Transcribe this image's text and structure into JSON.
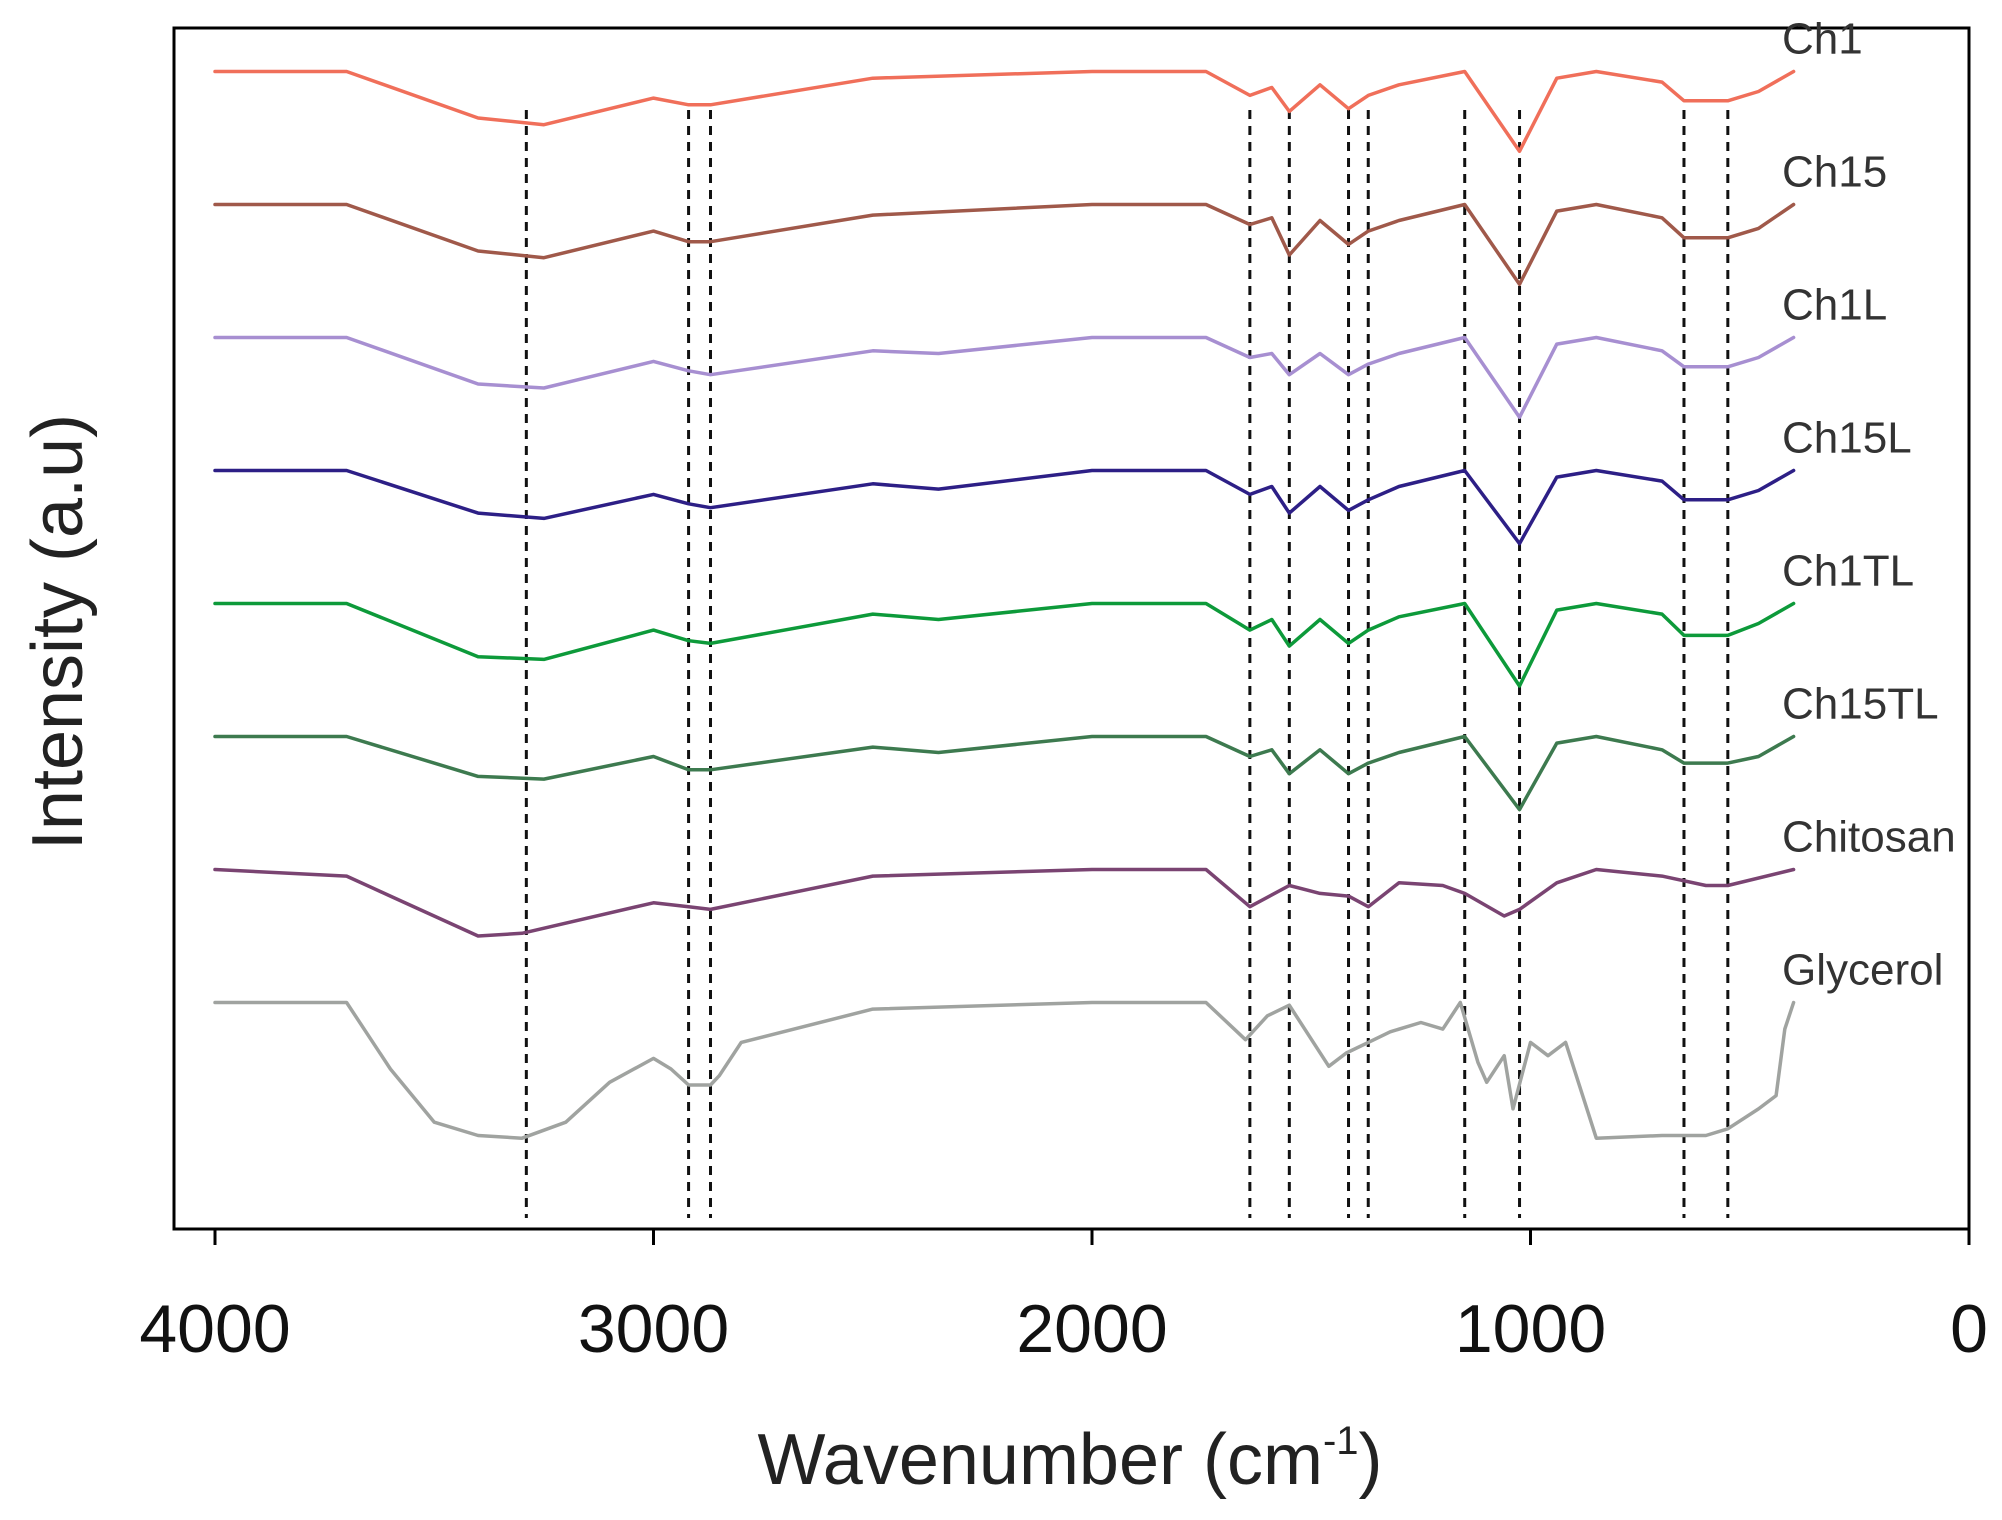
{
  "chart_data": {
    "type": "line",
    "title": "",
    "xlabel": "Wavenumber (cm",
    "xlabel_superscript": "-1",
    "xlabel_close": ")",
    "ylabel": "Intensity (a.u)",
    "xlim": [
      4000,
      0
    ],
    "x_ticks": [
      4000,
      3000,
      2000,
      1000,
      0
    ],
    "x_tick_labels": [
      "4000",
      "3000",
      "2000",
      "1000",
      "0"
    ],
    "y_ticks": [],
    "grid": false,
    "reference_lines": [
      3290,
      2920,
      2870,
      1640,
      1550,
      1415,
      1370,
      1150,
      1025,
      650,
      550
    ],
    "series": [
      {
        "name": "Ch1",
        "color": "#f06f5a",
        "offset": 8.5,
        "x": [
          4000,
          3700,
          3400,
          3250,
          3000,
          2920,
          2870,
          2500,
          2000,
          1740,
          1640,
          1590,
          1550,
          1480,
          1415,
          1370,
          1300,
          1150,
          1025,
          940,
          850,
          700,
          650,
          550,
          480,
          400
        ],
        "y": [
          0,
          0,
          -0.35,
          -0.4,
          -0.2,
          -0.25,
          -0.25,
          -0.05,
          0,
          0,
          -0.18,
          -0.12,
          -0.3,
          -0.1,
          -0.28,
          -0.18,
          -0.1,
          0,
          -0.6,
          -0.05,
          0,
          -0.08,
          -0.22,
          -0.22,
          -0.15,
          0
        ]
      },
      {
        "name": "Ch15",
        "color": "#a0594a",
        "offset": 7.5,
        "x": [
          4000,
          3700,
          3400,
          3250,
          3000,
          2920,
          2870,
          2500,
          2000,
          1740,
          1640,
          1590,
          1550,
          1480,
          1415,
          1370,
          1300,
          1150,
          1025,
          940,
          850,
          700,
          650,
          550,
          480,
          400
        ],
        "y": [
          0,
          0,
          -0.35,
          -0.4,
          -0.2,
          -0.28,
          -0.28,
          -0.08,
          0,
          0,
          -0.15,
          -0.1,
          -0.38,
          -0.12,
          -0.3,
          -0.2,
          -0.12,
          0,
          -0.6,
          -0.05,
          0,
          -0.1,
          -0.25,
          -0.25,
          -0.18,
          0
        ]
      },
      {
        "name": "Ch1L",
        "color": "#a78fd1",
        "offset": 6.5,
        "x": [
          4000,
          3700,
          3400,
          3250,
          3000,
          2920,
          2870,
          2500,
          2350,
          2000,
          1740,
          1640,
          1590,
          1550,
          1480,
          1415,
          1370,
          1300,
          1150,
          1025,
          940,
          850,
          700,
          650,
          550,
          480,
          400
        ],
        "y": [
          0,
          0,
          -0.35,
          -0.38,
          -0.18,
          -0.25,
          -0.28,
          -0.1,
          -0.12,
          0,
          0,
          -0.15,
          -0.12,
          -0.28,
          -0.12,
          -0.28,
          -0.2,
          -0.12,
          0,
          -0.6,
          -0.05,
          0,
          -0.1,
          -0.22,
          -0.22,
          -0.15,
          0
        ]
      },
      {
        "name": "Ch15L",
        "color": "#2d1f86",
        "offset": 5.5,
        "x": [
          4000,
          3700,
          3400,
          3250,
          3000,
          2920,
          2870,
          2500,
          2350,
          2000,
          1740,
          1640,
          1590,
          1550,
          1480,
          1415,
          1370,
          1300,
          1150,
          1025,
          940,
          850,
          700,
          650,
          550,
          480,
          400
        ],
        "y": [
          0,
          0,
          -0.32,
          -0.36,
          -0.18,
          -0.25,
          -0.28,
          -0.1,
          -0.14,
          0,
          0,
          -0.18,
          -0.12,
          -0.32,
          -0.12,
          -0.3,
          -0.22,
          -0.12,
          0,
          -0.55,
          -0.05,
          0,
          -0.08,
          -0.22,
          -0.22,
          -0.15,
          0
        ]
      },
      {
        "name": "Ch1TL",
        "color": "#0d9a3a",
        "offset": 4.5,
        "x": [
          4000,
          3700,
          3400,
          3250,
          3000,
          2920,
          2870,
          2500,
          2350,
          2000,
          1740,
          1640,
          1590,
          1550,
          1480,
          1415,
          1370,
          1300,
          1150,
          1025,
          940,
          850,
          700,
          650,
          550,
          480,
          400
        ],
        "y": [
          0,
          0,
          -0.4,
          -0.42,
          -0.2,
          -0.28,
          -0.3,
          -0.08,
          -0.12,
          0,
          0,
          -0.2,
          -0.12,
          -0.32,
          -0.12,
          -0.3,
          -0.2,
          -0.1,
          0,
          -0.62,
          -0.05,
          0,
          -0.08,
          -0.24,
          -0.24,
          -0.15,
          0
        ]
      },
      {
        "name": "Ch15TL",
        "color": "#3d7a4f",
        "offset": 3.5,
        "x": [
          4000,
          3700,
          3400,
          3250,
          3000,
          2920,
          2870,
          2500,
          2350,
          2000,
          1740,
          1640,
          1590,
          1550,
          1480,
          1415,
          1370,
          1300,
          1150,
          1025,
          940,
          850,
          700,
          650,
          550,
          480,
          400
        ],
        "y": [
          0,
          0,
          -0.3,
          -0.32,
          -0.15,
          -0.25,
          -0.25,
          -0.08,
          -0.12,
          0,
          0,
          -0.15,
          -0.1,
          -0.28,
          -0.1,
          -0.28,
          -0.2,
          -0.12,
          0,
          -0.55,
          -0.05,
          0,
          -0.1,
          -0.2,
          -0.2,
          -0.15,
          0
        ]
      },
      {
        "name": "Chitosan",
        "color": "#7a4472",
        "offset": 2.5,
        "x": [
          4000,
          3700,
          3600,
          3400,
          3300,
          3000,
          2920,
          2870,
          2500,
          2000,
          1740,
          1640,
          1550,
          1480,
          1415,
          1370,
          1300,
          1200,
          1150,
          1060,
          1025,
          940,
          850,
          700,
          600,
          550,
          400
        ],
        "y": [
          0,
          -0.05,
          -0.2,
          -0.5,
          -0.48,
          -0.25,
          -0.28,
          -0.3,
          -0.05,
          0,
          0,
          -0.28,
          -0.12,
          -0.18,
          -0.2,
          -0.28,
          -0.1,
          -0.12,
          -0.18,
          -0.35,
          -0.3,
          -0.1,
          0,
          -0.05,
          -0.12,
          -0.12,
          0
        ]
      },
      {
        "name": "Glycerol",
        "color": "#a0a3a0",
        "offset": 1.5,
        "x": [
          4000,
          3700,
          3600,
          3500,
          3400,
          3300,
          3200,
          3100,
          3000,
          2960,
          2920,
          2870,
          2850,
          2800,
          2500,
          2000,
          1740,
          1650,
          1600,
          1550,
          1460,
          1420,
          1370,
          1320,
          1250,
          1200,
          1160,
          1120,
          1100,
          1060,
          1040,
          1000,
          960,
          920,
          850,
          700,
          600,
          550,
          480,
          440,
          420,
          400
        ],
        "y": [
          0,
          0,
          -0.5,
          -0.9,
          -1.0,
          -1.02,
          -0.9,
          -0.6,
          -0.42,
          -0.5,
          -0.62,
          -0.62,
          -0.55,
          -0.3,
          -0.05,
          0,
          0,
          -0.28,
          -0.1,
          -0.02,
          -0.48,
          -0.38,
          -0.3,
          -0.22,
          -0.15,
          -0.2,
          0,
          -0.45,
          -0.6,
          -0.4,
          -0.8,
          -0.3,
          -0.4,
          -0.3,
          -1.02,
          -1.0,
          -1.0,
          -0.95,
          -0.8,
          -0.7,
          -0.2,
          0
        ]
      }
    ]
  }
}
